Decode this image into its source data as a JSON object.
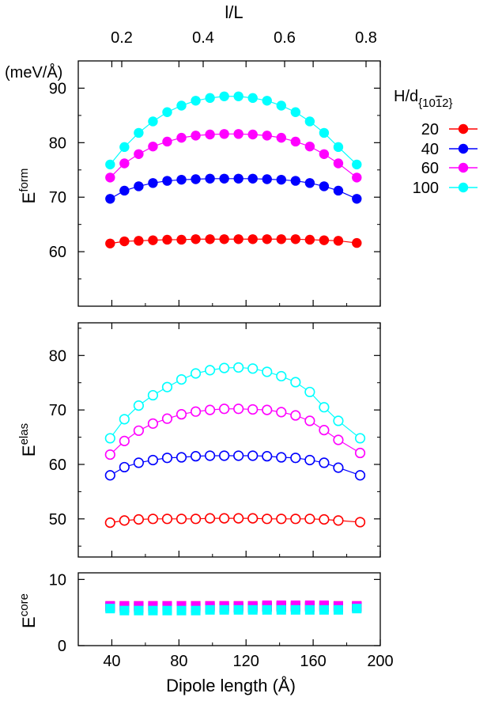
{
  "chart_data": [
    {
      "id": "form",
      "type": "line",
      "ylabel_base": "E",
      "ylabel_sup": "form",
      "unit_label": "(meV/Å)",
      "top_axis_label": "l/L",
      "top_ticks": [
        "0.2",
        "0.4",
        "0.6",
        "0.8"
      ],
      "top_tick_values": [
        0.2,
        0.4,
        0.6,
        0.8
      ],
      "xlim": [
        20,
        200
      ],
      "ylim": [
        50,
        95
      ],
      "y_ticks": [
        60,
        70,
        80,
        90
      ],
      "marker": "filled-circle",
      "legend": {
        "title": "H/d",
        "title_sub": "{10",
        "title_sub_bar": "1",
        "title_sub_end": "2}",
        "entries": [
          "20",
          "40",
          "60",
          "100"
        ]
      },
      "x": [
        39,
        47.5,
        56,
        64.5,
        73,
        81.5,
        90,
        98.5,
        107,
        115.5,
        124,
        132.5,
        141,
        149.5,
        158,
        166.5,
        175,
        186
      ],
      "series": [
        {
          "name": "20",
          "color": "#ff0000",
          "values": [
            61.5,
            61.9,
            62.0,
            62.1,
            62.2,
            62.2,
            62.3,
            62.3,
            62.3,
            62.3,
            62.3,
            62.3,
            62.3,
            62.3,
            62.2,
            62.1,
            62.0,
            61.6
          ]
        },
        {
          "name": "40",
          "color": "#0000ff",
          "values": [
            69.7,
            71.2,
            72.0,
            72.6,
            73.0,
            73.2,
            73.3,
            73.4,
            73.4,
            73.4,
            73.4,
            73.3,
            73.2,
            73.0,
            72.6,
            72.0,
            71.2,
            69.7
          ]
        },
        {
          "name": "60",
          "color": "#ff00ff",
          "values": [
            73.6,
            76.2,
            77.9,
            79.3,
            80.2,
            80.9,
            81.3,
            81.5,
            81.6,
            81.6,
            81.5,
            81.3,
            80.9,
            80.2,
            79.3,
            77.9,
            76.2,
            73.6
          ]
        },
        {
          "name": "100",
          "color": "#00ffff",
          "values": [
            76.0,
            79.2,
            81.8,
            83.9,
            85.6,
            86.8,
            87.7,
            88.2,
            88.5,
            88.5,
            88.2,
            87.7,
            86.8,
            85.6,
            83.9,
            81.8,
            79.2,
            76.0
          ]
        }
      ]
    },
    {
      "id": "elas",
      "type": "line",
      "ylabel_base": "E",
      "ylabel_sup": "elas",
      "xlim": [
        20,
        200
      ],
      "ylim": [
        43,
        86
      ],
      "y_ticks": [
        50,
        60,
        70,
        80
      ],
      "marker": "open-circle",
      "x": [
        39,
        47.5,
        56,
        64.5,
        73,
        81.5,
        90,
        98.5,
        107,
        115.5,
        124,
        132.5,
        141,
        149.5,
        158,
        166.5,
        175,
        188
      ],
      "series": [
        {
          "name": "20",
          "color": "#ff0000",
          "values": [
            49.3,
            49.7,
            49.9,
            50.0,
            50.0,
            50.0,
            50.0,
            50.1,
            50.1,
            50.1,
            50.1,
            50.0,
            50.0,
            50.0,
            50.0,
            49.9,
            49.7,
            49.4
          ]
        },
        {
          "name": "40",
          "color": "#0000ff",
          "values": [
            58.0,
            59.5,
            60.3,
            60.8,
            61.2,
            61.3,
            61.5,
            61.6,
            61.6,
            61.6,
            61.6,
            61.5,
            61.3,
            61.2,
            60.8,
            60.3,
            59.4,
            58.0
          ]
        },
        {
          "name": "60",
          "color": "#ff00ff",
          "values": [
            61.8,
            64.3,
            66.2,
            67.5,
            68.4,
            69.2,
            69.7,
            70.0,
            70.2,
            70.2,
            70.1,
            70.0,
            69.6,
            69.0,
            68.0,
            66.3,
            64.5,
            62.1
          ]
        },
        {
          "name": "100",
          "color": "#00ffff",
          "values": [
            64.8,
            68.3,
            70.8,
            72.7,
            74.2,
            75.6,
            76.7,
            77.3,
            77.7,
            77.8,
            77.6,
            77.0,
            76.2,
            75.1,
            73.3,
            70.5,
            68.0,
            64.8
          ]
        }
      ]
    },
    {
      "id": "core",
      "type": "scatter",
      "ylabel_base": "E",
      "ylabel_sup": "core",
      "xlabel": "Dipole length (Å)",
      "xlim": [
        20,
        200
      ],
      "x_ticks": [
        40,
        80,
        120,
        160,
        200
      ],
      "ylim": [
        0,
        11
      ],
      "y_ticks": [
        0,
        10
      ],
      "marker": "filled-square",
      "x": [
        39,
        47.5,
        56,
        64.5,
        73,
        81.5,
        90,
        98.5,
        107,
        115.5,
        124,
        132.5,
        141,
        149.5,
        158,
        166.5,
        175,
        186
      ],
      "series": [
        {
          "name": "20",
          "color": "#ff0000",
          "values": [
            6.0,
            6.0,
            6.0,
            6.0,
            6.0,
            6.0,
            6.0,
            6.0,
            6.0,
            6.0,
            6.0,
            6.0,
            6.0,
            6.0,
            6.0,
            6.0,
            6.0,
            6.0
          ]
        },
        {
          "name": "40",
          "color": "#0000ff",
          "values": [
            5.8,
            5.7,
            5.7,
            5.7,
            5.7,
            5.7,
            5.7,
            5.7,
            5.7,
            5.7,
            5.7,
            5.8,
            5.8,
            5.8,
            5.8,
            5.8,
            5.8,
            5.8
          ]
        },
        {
          "name": "60",
          "color": "#ff00ff",
          "values": [
            6.0,
            6.0,
            6.0,
            6.0,
            6.0,
            6.0,
            6.0,
            6.0,
            6.0,
            6.0,
            6.0,
            6.1,
            6.1,
            6.1,
            6.1,
            6.1,
            6.0,
            6.0
          ]
        },
        {
          "name": "100",
          "color": "#00ffff",
          "values": [
            5.6,
            5.3,
            5.3,
            5.3,
            5.3,
            5.3,
            5.3,
            5.4,
            5.4,
            5.4,
            5.4,
            5.4,
            5.4,
            5.4,
            5.4,
            5.4,
            5.4,
            5.6
          ]
        }
      ]
    }
  ]
}
